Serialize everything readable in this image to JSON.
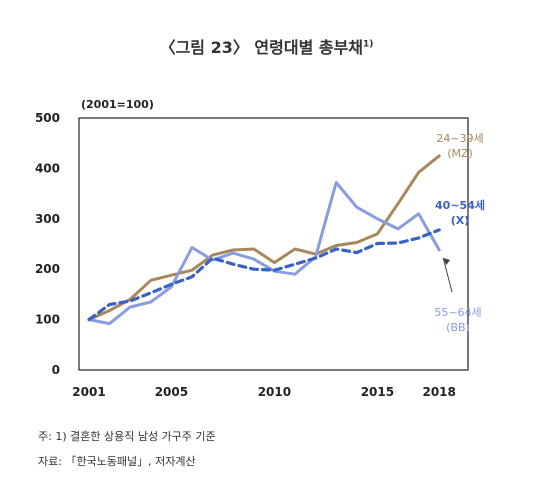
{
  "figure": {
    "title_main": "〈그림 23〉 연령대별 총부채",
    "title_sup": "1)",
    "unit": "(2001=100)",
    "note": "주: 1) 결혼한 상용직 남성 가구주 기준",
    "source": "자료: 「한국노동패널」, 저자계산"
  },
  "chart_data": {
    "type": "line",
    "title": "〈그림 23〉 연령대별 총부채",
    "ylabel": "(2001=100)",
    "xlim": [
      2001,
      2019
    ],
    "ylim": [
      0,
      500
    ],
    "x_ticks": [
      "2001",
      "2005",
      "2010",
      "2015",
      "2018"
    ],
    "y_ticks": [
      "0",
      "100",
      "200",
      "300",
      "400",
      "500"
    ],
    "grid": false,
    "x": [
      2001,
      2002,
      2003,
      2004,
      2005,
      2006,
      2007,
      2008,
      2009,
      2010,
      2011,
      2012,
      2013,
      2014,
      2015,
      2016,
      2017,
      2018
    ],
    "series": [
      {
        "label_lines": [
          "24~39세",
          "(MZ)"
        ],
        "color": "#a8875a",
        "dashed": false,
        "values": [
          100,
          118,
          140,
          178,
          188,
          198,
          228,
          238,
          240,
          213,
          240,
          230,
          247,
          253,
          270,
          330,
          392,
          425
        ]
      },
      {
        "label_lines": [
          "55~64세",
          "(BB)"
        ],
        "color": "#8a9ce0",
        "dashed": false,
        "values": [
          100,
          92,
          125,
          135,
          165,
          243,
          218,
          232,
          220,
          196,
          190,
          225,
          372,
          323,
          300,
          280,
          310,
          238
        ]
      },
      {
        "label_lines": [
          "40~54세",
          "(X)"
        ],
        "color": "#3a62c6",
        "dashed": true,
        "values": [
          100,
          130,
          137,
          153,
          170,
          185,
          222,
          210,
          200,
          198,
          210,
          222,
          240,
          233,
          251,
          252,
          262,
          278
        ]
      }
    ]
  }
}
